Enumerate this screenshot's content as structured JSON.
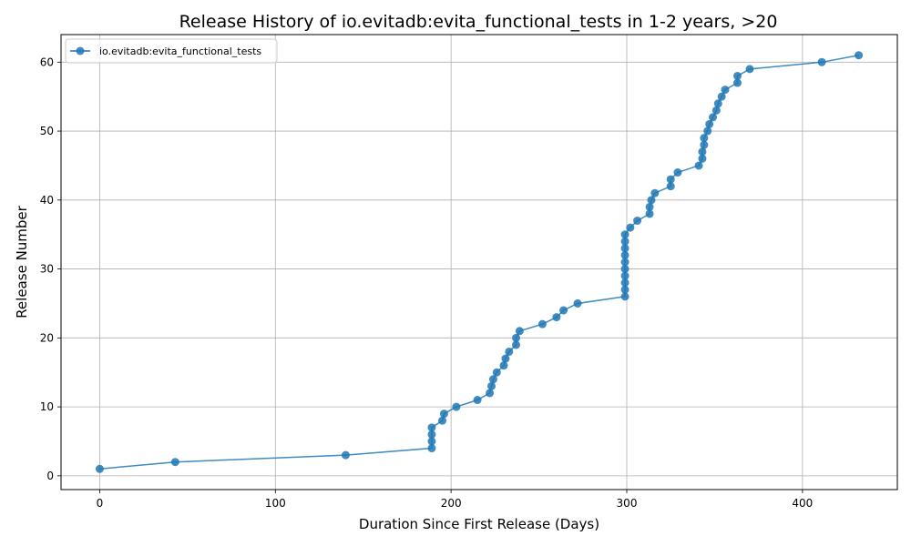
{
  "chart_data": {
    "type": "line",
    "title": "Release History of io.evitadb:evita_functional_tests in 1-2 years, >20",
    "xlabel": "Duration Since First Release (Days)",
    "ylabel": "Release Number",
    "xlim": [
      -22,
      454
    ],
    "ylim": [
      -2,
      64
    ],
    "xticks": [
      0,
      100,
      200,
      300,
      400
    ],
    "yticks": [
      0,
      10,
      20,
      30,
      40,
      50,
      60
    ],
    "grid": true,
    "legend_position": "top-left",
    "series": [
      {
        "name": "io.evitadb:evita_functional_tests",
        "color": "#1f77b4",
        "marker": "circle",
        "x": [
          0,
          43,
          140,
          189,
          189,
          189,
          189,
          195,
          196,
          203,
          215,
          222,
          223,
          224,
          226,
          230,
          231,
          233,
          237,
          237,
          239,
          252,
          260,
          264,
          272,
          299,
          299,
          299,
          299,
          299,
          299,
          299,
          299,
          299,
          299,
          302,
          306,
          313,
          313,
          314,
          316,
          325,
          325,
          329,
          341,
          343,
          343,
          344,
          344,
          346,
          347,
          349,
          351,
          352,
          354,
          356,
          363,
          363,
          370,
          411,
          432
        ],
        "y": [
          1,
          2,
          3,
          4,
          5,
          6,
          7,
          8,
          9,
          10,
          11,
          12,
          13,
          14,
          15,
          16,
          17,
          18,
          19,
          20,
          21,
          22,
          23,
          24,
          25,
          26,
          27,
          28,
          29,
          30,
          31,
          32,
          33,
          34,
          35,
          36,
          37,
          38,
          39,
          40,
          41,
          42,
          43,
          44,
          45,
          46,
          47,
          48,
          49,
          50,
          51,
          52,
          53,
          54,
          55,
          56,
          57,
          58,
          59,
          60,
          61
        ]
      }
    ]
  }
}
